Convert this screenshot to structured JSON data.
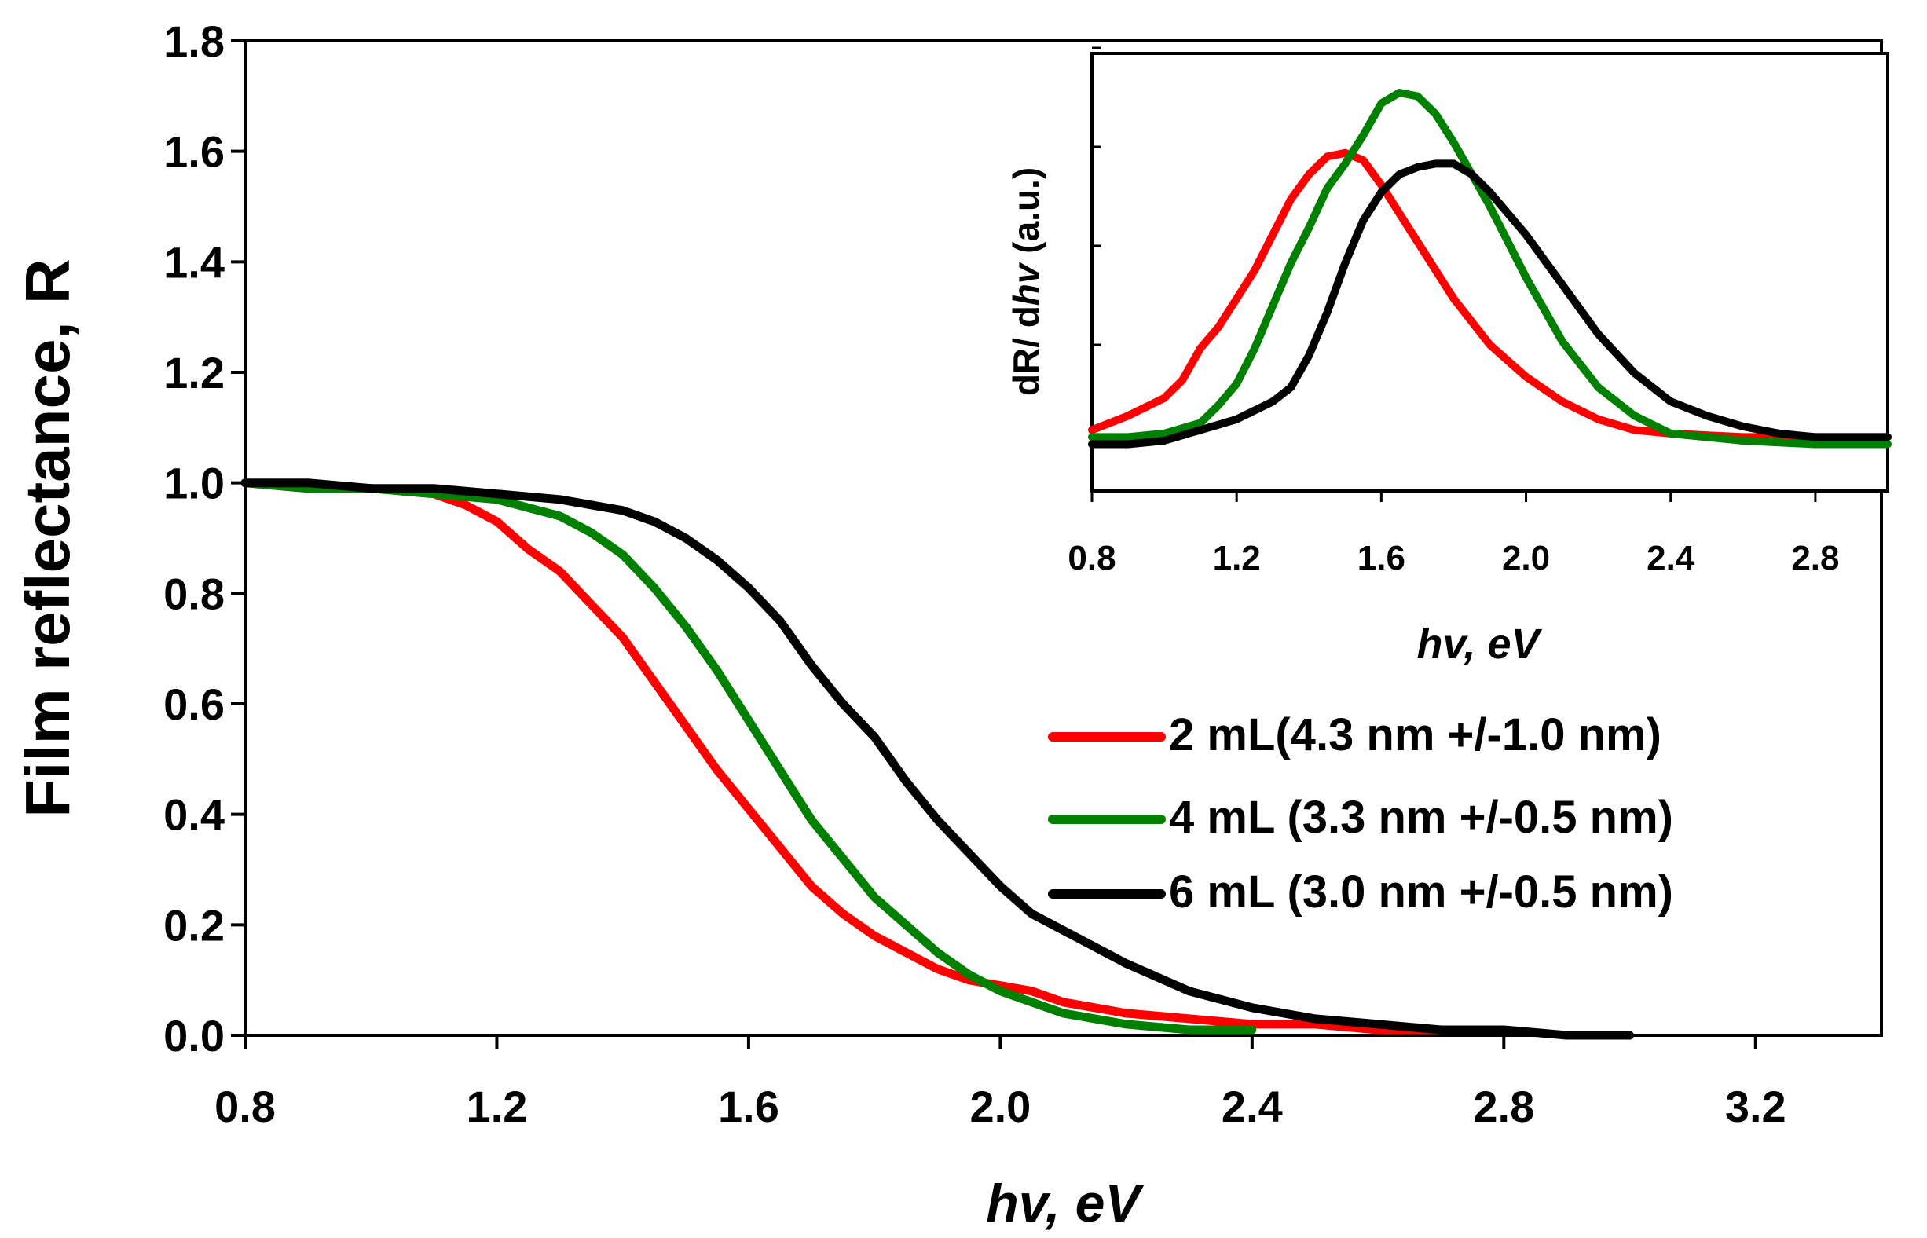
{
  "chart_data": [
    {
      "type": "line",
      "xlabel": "hv, eV",
      "ylabel": "Film reflectance, R",
      "xlim": [
        0.8,
        3.4
      ],
      "ylim": [
        0.0,
        1.8
      ],
      "xticks": [
        "0.8",
        "1.2",
        "1.6",
        "2.0",
        "2.4",
        "2.8",
        "3.2"
      ],
      "yticks": [
        "0.0",
        "0.2",
        "0.4",
        "0.6",
        "0.8",
        "1.0",
        "1.2",
        "1.4",
        "1.6",
        "1.8"
      ],
      "grid": false,
      "legend": "right",
      "series": [
        {
          "name": "2 mL(4.3 nm +/-1.0 nm)",
          "color": "#ff0000",
          "x": [
            0.8,
            0.9,
            1.0,
            1.1,
            1.15,
            1.2,
            1.25,
            1.3,
            1.35,
            1.4,
            1.45,
            1.5,
            1.55,
            1.6,
            1.65,
            1.7,
            1.75,
            1.8,
            1.85,
            1.9,
            1.95,
            2.0,
            2.05,
            2.1,
            2.2,
            2.3,
            2.4,
            2.5,
            2.6,
            2.7
          ],
          "y": [
            1.0,
            0.99,
            0.99,
            0.98,
            0.96,
            0.93,
            0.88,
            0.84,
            0.78,
            0.72,
            0.64,
            0.56,
            0.48,
            0.41,
            0.34,
            0.27,
            0.22,
            0.18,
            0.15,
            0.12,
            0.1,
            0.09,
            0.08,
            0.06,
            0.04,
            0.03,
            0.02,
            0.02,
            0.01,
            0.01
          ]
        },
        {
          "name": "4 mL (3.3 nm +/-0.5 nm)",
          "color": "#008000",
          "x": [
            0.8,
            0.9,
            1.0,
            1.1,
            1.2,
            1.3,
            1.35,
            1.4,
            1.45,
            1.5,
            1.55,
            1.6,
            1.65,
            1.7,
            1.75,
            1.8,
            1.85,
            1.9,
            1.95,
            2.0,
            2.05,
            2.1,
            2.15,
            2.2,
            2.3,
            2.4
          ],
          "y": [
            1.0,
            0.99,
            0.99,
            0.98,
            0.97,
            0.94,
            0.91,
            0.87,
            0.81,
            0.74,
            0.66,
            0.57,
            0.48,
            0.39,
            0.32,
            0.25,
            0.2,
            0.15,
            0.11,
            0.08,
            0.06,
            0.04,
            0.03,
            0.02,
            0.01,
            0.01
          ]
        },
        {
          "name": "6 mL (3.0 nm +/-0.5 nm)",
          "color": "#000000",
          "x": [
            0.8,
            0.9,
            1.0,
            1.1,
            1.2,
            1.3,
            1.4,
            1.45,
            1.5,
            1.55,
            1.6,
            1.65,
            1.7,
            1.75,
            1.8,
            1.85,
            1.9,
            1.95,
            2.0,
            2.05,
            2.1,
            2.2,
            2.3,
            2.4,
            2.5,
            2.6,
            2.7,
            2.8,
            2.9,
            3.0
          ],
          "y": [
            1.0,
            1.0,
            0.99,
            0.99,
            0.98,
            0.97,
            0.95,
            0.93,
            0.9,
            0.86,
            0.81,
            0.75,
            0.67,
            0.6,
            0.54,
            0.46,
            0.39,
            0.33,
            0.27,
            0.22,
            0.19,
            0.13,
            0.08,
            0.05,
            0.03,
            0.02,
            0.01,
            0.01,
            0.0,
            0.0
          ]
        }
      ]
    },
    {
      "type": "line",
      "xlabel": "hv, eV",
      "ylabel_parts": [
        "dR/ d",
        "hv",
        "  (a.u.)"
      ],
      "xlim": [
        0.8,
        3.0
      ],
      "ylim": [
        0.0,
        1.0
      ],
      "xticks": [
        "0.8",
        "1.2",
        "1.6",
        "2.0",
        "2.4",
        "2.8"
      ],
      "ytick_labels_shown": false,
      "series": [
        {
          "color": "#ff0000",
          "x": [
            0.8,
            0.9,
            1.0,
            1.05,
            1.1,
            1.15,
            1.2,
            1.25,
            1.3,
            1.35,
            1.4,
            1.45,
            1.5,
            1.55,
            1.6,
            1.65,
            1.7,
            1.8,
            1.9,
            2.0,
            2.1,
            2.2,
            2.3,
            2.4,
            2.6,
            2.8,
            3.0
          ],
          "y": [
            0.05,
            0.09,
            0.14,
            0.19,
            0.28,
            0.34,
            0.42,
            0.5,
            0.6,
            0.7,
            0.77,
            0.82,
            0.83,
            0.81,
            0.74,
            0.66,
            0.58,
            0.42,
            0.29,
            0.2,
            0.13,
            0.08,
            0.05,
            0.04,
            0.03,
            0.03,
            0.03
          ]
        },
        {
          "color": "#008000",
          "x": [
            0.8,
            0.9,
            1.0,
            1.1,
            1.15,
            1.2,
            1.25,
            1.3,
            1.35,
            1.4,
            1.45,
            1.5,
            1.55,
            1.6,
            1.65,
            1.7,
            1.75,
            1.8,
            1.9,
            2.0,
            2.1,
            2.2,
            2.3,
            2.4,
            2.6,
            2.8,
            3.0
          ],
          "y": [
            0.03,
            0.03,
            0.04,
            0.07,
            0.12,
            0.18,
            0.28,
            0.4,
            0.52,
            0.62,
            0.73,
            0.8,
            0.88,
            0.97,
            1.0,
            0.99,
            0.94,
            0.86,
            0.68,
            0.48,
            0.3,
            0.17,
            0.09,
            0.04,
            0.02,
            0.01,
            0.01
          ]
        },
        {
          "color": "#000000",
          "x": [
            0.8,
            0.9,
            1.0,
            1.1,
            1.2,
            1.3,
            1.35,
            1.4,
            1.45,
            1.5,
            1.55,
            1.6,
            1.65,
            1.7,
            1.75,
            1.8,
            1.85,
            1.9,
            2.0,
            2.1,
            2.2,
            2.3,
            2.4,
            2.5,
            2.6,
            2.7,
            2.8,
            3.0
          ],
          "y": [
            0.01,
            0.01,
            0.02,
            0.05,
            0.08,
            0.13,
            0.17,
            0.26,
            0.38,
            0.52,
            0.64,
            0.72,
            0.77,
            0.79,
            0.8,
            0.8,
            0.77,
            0.72,
            0.6,
            0.46,
            0.32,
            0.21,
            0.13,
            0.09,
            0.06,
            0.04,
            0.03,
            0.03
          ]
        }
      ]
    }
  ]
}
